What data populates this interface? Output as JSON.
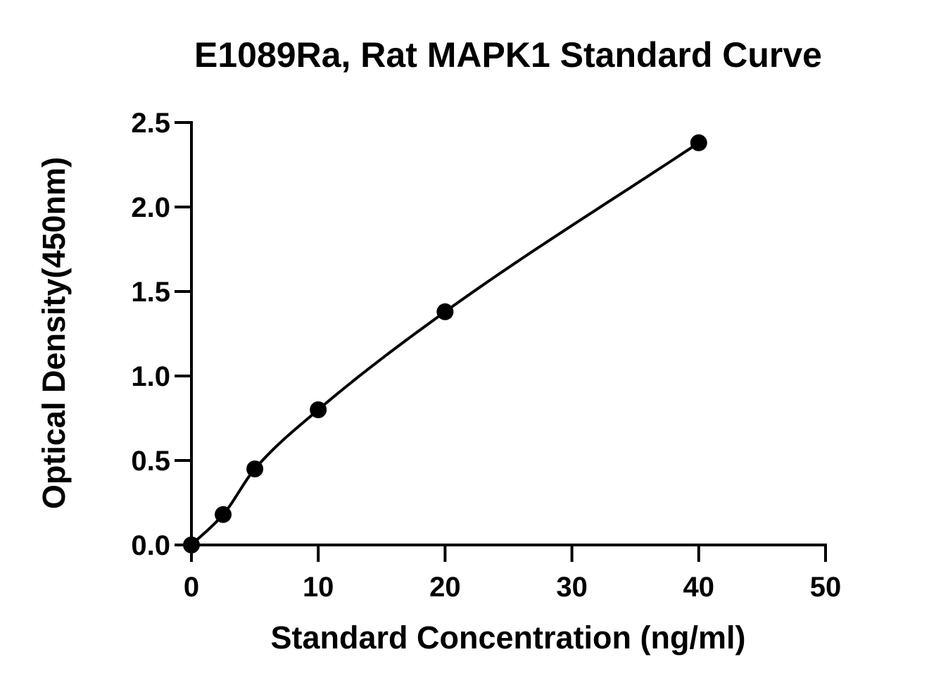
{
  "chart_data": {
    "type": "scatter",
    "title": "E1089Ra, Rat MAPK1 Standard Curve",
    "xlabel": "Standard Concentration (ng/ml)",
    "ylabel": "Optical Density(450nm)",
    "xlim": [
      0,
      50
    ],
    "ylim": [
      0,
      2.5
    ],
    "xticks": [
      "0",
      "10",
      "20",
      "30",
      "40",
      "50"
    ],
    "yticks": [
      "0.0",
      "0.5",
      "1.0",
      "1.5",
      "2.0",
      "2.5"
    ],
    "grid": false,
    "legend": "none",
    "series": [
      {
        "x": [
          0,
          2.5,
          5,
          10,
          20,
          40
        ],
        "y": [
          0.0,
          0.18,
          0.45,
          0.8,
          1.38,
          2.38
        ],
        "marker": "circle",
        "color": "#000000",
        "fit_curve": true
      }
    ]
  }
}
